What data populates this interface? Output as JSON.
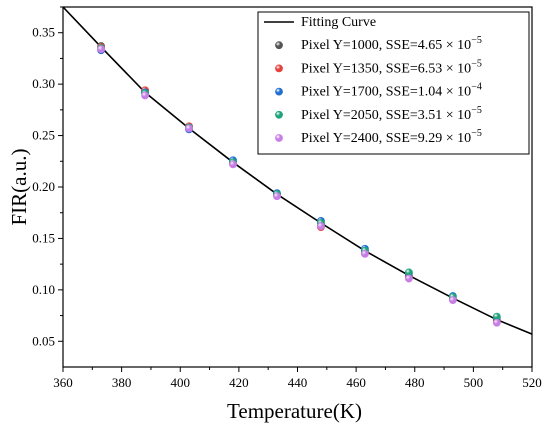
{
  "chart_data": {
    "type": "scatter",
    "xlabel": "Temperature(K)",
    "ylabel": "FIR(a.u.)",
    "xlim": [
      360,
      520
    ],
    "ylim": [
      0.025,
      0.375
    ],
    "x_ticks": [
      360,
      380,
      400,
      420,
      440,
      460,
      480,
      500,
      520
    ],
    "y_ticks": [
      0.05,
      0.1,
      0.15,
      0.2,
      0.25,
      0.3,
      0.35
    ],
    "y_tick_labels": [
      "0.05",
      "0.10",
      "0.15",
      "0.20",
      "0.25",
      "0.30",
      "0.35"
    ],
    "grid": false,
    "legend_position": "top-right",
    "fit": {
      "name": "Fitting Curve",
      "color": "#000000",
      "x": [
        360,
        373,
        388,
        403,
        418,
        433,
        448,
        463,
        478,
        493,
        508,
        520
      ],
      "y": [
        0.375,
        0.336,
        0.292,
        0.257,
        0.224,
        0.193,
        0.165,
        0.138,
        0.114,
        0.092,
        0.071,
        0.057
      ]
    },
    "series": [
      {
        "name": "Pixel Y=1000",
        "sse_mantissa": "4.65",
        "sse_exponent": "-5",
        "color": "#555555",
        "x": [
          373,
          388,
          403,
          418,
          433,
          448,
          463,
          478,
          493,
          508
        ],
        "y": [
          0.337,
          0.293,
          0.257,
          0.224,
          0.193,
          0.164,
          0.138,
          0.114,
          0.092,
          0.071
        ]
      },
      {
        "name": "Pixel Y=1350",
        "sse_mantissa": "6.53",
        "sse_exponent": "-5",
        "color": "#e8413c",
        "x": [
          373,
          388,
          403,
          418,
          433,
          448,
          463,
          478,
          493,
          508
        ],
        "y": [
          0.336,
          0.294,
          0.259,
          0.223,
          0.192,
          0.161,
          0.136,
          0.113,
          0.091,
          0.07
        ]
      },
      {
        "name": "Pixel Y=1700",
        "sse_mantissa": "1.04",
        "sse_exponent": "-4",
        "color": "#1f6fcf",
        "x": [
          373,
          388,
          403,
          418,
          433,
          448,
          463,
          478,
          493,
          508
        ],
        "y": [
          0.333,
          0.292,
          0.256,
          0.226,
          0.194,
          0.167,
          0.14,
          0.116,
          0.094,
          0.073
        ]
      },
      {
        "name": "Pixel Y=2050",
        "sse_mantissa": "3.51",
        "sse_exponent": "-5",
        "color": "#1fa37a",
        "x": [
          373,
          388,
          403,
          418,
          433,
          448,
          463,
          478,
          493,
          508
        ],
        "y": [
          0.335,
          0.291,
          0.258,
          0.224,
          0.193,
          0.165,
          0.138,
          0.117,
          0.093,
          0.074
        ]
      },
      {
        "name": "Pixel Y=2400",
        "sse_mantissa": "9.29",
        "sse_exponent": "-5",
        "color": "#c77ee6",
        "x": [
          373,
          388,
          403,
          418,
          433,
          448,
          463,
          478,
          493,
          508
        ],
        "y": [
          0.334,
          0.289,
          0.257,
          0.222,
          0.191,
          0.162,
          0.135,
          0.111,
          0.09,
          0.068
        ]
      }
    ]
  }
}
